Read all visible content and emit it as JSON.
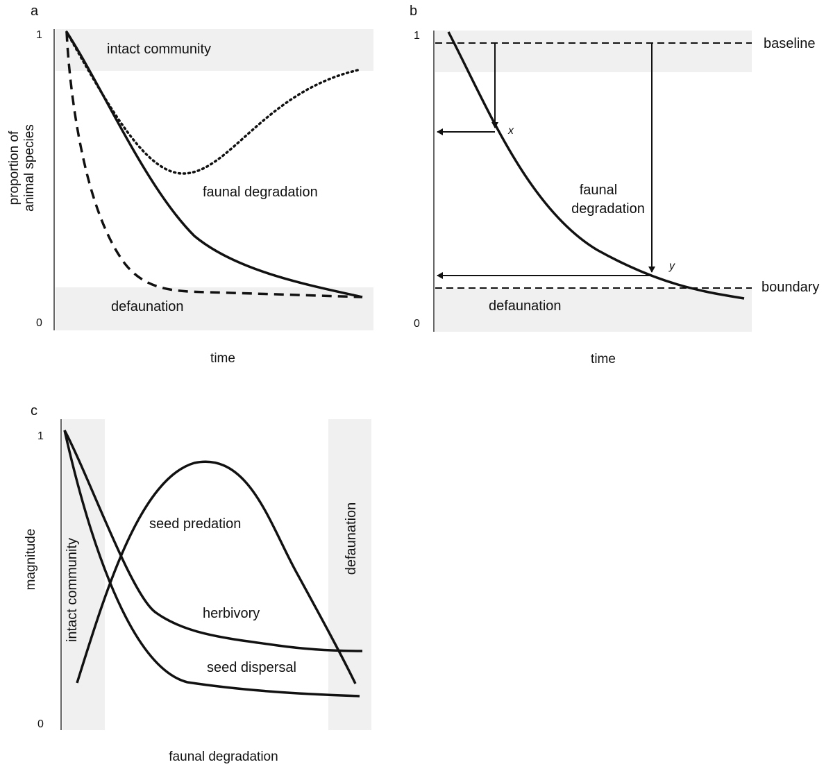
{
  "panels": {
    "a": {
      "letter": "a",
      "ylabel_line1": "proportion of",
      "ylabel_line2": "animal species",
      "xlabel": "time",
      "tick_top": "1",
      "tick_bottom": "0",
      "label_intact": "intact community",
      "label_degradation": "faunal degradation",
      "label_defaunation": "defaunation"
    },
    "b": {
      "letter": "b",
      "xlabel": "time",
      "tick_top": "1",
      "tick_bottom": "0",
      "label_baseline": "baseline",
      "label_boundary": "boundary",
      "label_degradation_line1": "faunal",
      "label_degradation_line2": "degradation",
      "label_defaunation": "defaunation",
      "label_x": "x",
      "label_y": "y"
    },
    "c": {
      "letter": "c",
      "ylabel": "magnitude",
      "xlabel": "faunal degradation",
      "tick_top": "1",
      "tick_bottom": "0",
      "label_intact": "intact community",
      "label_defaunation": "defaunation",
      "label_seed_predation": "seed predation",
      "label_herbivory": "herbivory",
      "label_seed_dispersal": "seed dispersal"
    }
  },
  "chart_data": [
    {
      "panel": "a",
      "type": "line",
      "xlabel": "time",
      "ylabel": "proportion of animal species",
      "ylim": [
        0,
        1
      ],
      "zones": [
        {
          "name": "intact community",
          "range": [
            0.87,
            1.0
          ]
        },
        {
          "name": "defaunation",
          "range": [
            0,
            0.14
          ]
        }
      ],
      "series": [
        {
          "style": "solid",
          "x": [
            0.02,
            0.2,
            0.4,
            0.6,
            0.8,
            1.0
          ],
          "y": [
            1.0,
            0.64,
            0.34,
            0.22,
            0.15,
            0.11
          ]
        },
        {
          "style": "dashed",
          "x": [
            0.02,
            0.06,
            0.12,
            0.2,
            0.35,
            1.0
          ],
          "y": [
            1.0,
            0.62,
            0.3,
            0.15,
            0.13,
            0.11
          ]
        },
        {
          "style": "dotted",
          "x": [
            0.02,
            0.2,
            0.4,
            0.6,
            0.8,
            1.0
          ],
          "y": [
            1.0,
            0.62,
            0.53,
            0.62,
            0.78,
            0.87
          ]
        }
      ]
    },
    {
      "panel": "b",
      "type": "line",
      "xlabel": "time",
      "ylim": [
        0,
        1
      ],
      "zones": [
        {
          "name": "baseline",
          "range": [
            0.87,
            1.0
          ]
        },
        {
          "name": "defaunation",
          "range": [
            0,
            0.14
          ]
        }
      ],
      "reference_lines": [
        {
          "name": "baseline",
          "y": 0.96
        },
        {
          "name": "boundary",
          "y": 0.14
        }
      ],
      "series": [
        {
          "style": "solid",
          "x": [
            0.05,
            0.2,
            0.35,
            0.5,
            0.7,
            0.85,
            1.0
          ],
          "y": [
            1.0,
            0.67,
            0.41,
            0.27,
            0.19,
            0.15,
            0.11
          ]
        }
      ],
      "markers": [
        {
          "label": "x",
          "x": 0.2,
          "y": 0.67
        },
        {
          "label": "y",
          "x": 0.69,
          "y": 0.19
        }
      ]
    },
    {
      "panel": "c",
      "type": "line",
      "xlabel": "faunal degradation",
      "ylabel": "magnitude",
      "ylim": [
        0,
        1
      ],
      "zones": [
        {
          "name": "intact community",
          "range": [
            0,
            0.13
          ]
        },
        {
          "name": "defaunation",
          "range": [
            0.87,
            1.0
          ]
        }
      ],
      "series": [
        {
          "name": "seed predation",
          "x": [
            0.05,
            0.2,
            0.42,
            0.6,
            0.8,
            0.96
          ],
          "y": [
            0.14,
            0.62,
            0.88,
            0.75,
            0.4,
            0.13
          ]
        },
        {
          "name": "herbivory",
          "x": [
            0.02,
            0.15,
            0.3,
            0.5,
            0.75,
            0.96
          ],
          "y": [
            1.0,
            0.68,
            0.38,
            0.32,
            0.26,
            0.25
          ]
        },
        {
          "name": "seed dispersal",
          "x": [
            0.02,
            0.1,
            0.2,
            0.4,
            0.7,
            0.96
          ],
          "y": [
            1.0,
            0.58,
            0.3,
            0.14,
            0.11,
            0.09
          ]
        }
      ]
    }
  ]
}
